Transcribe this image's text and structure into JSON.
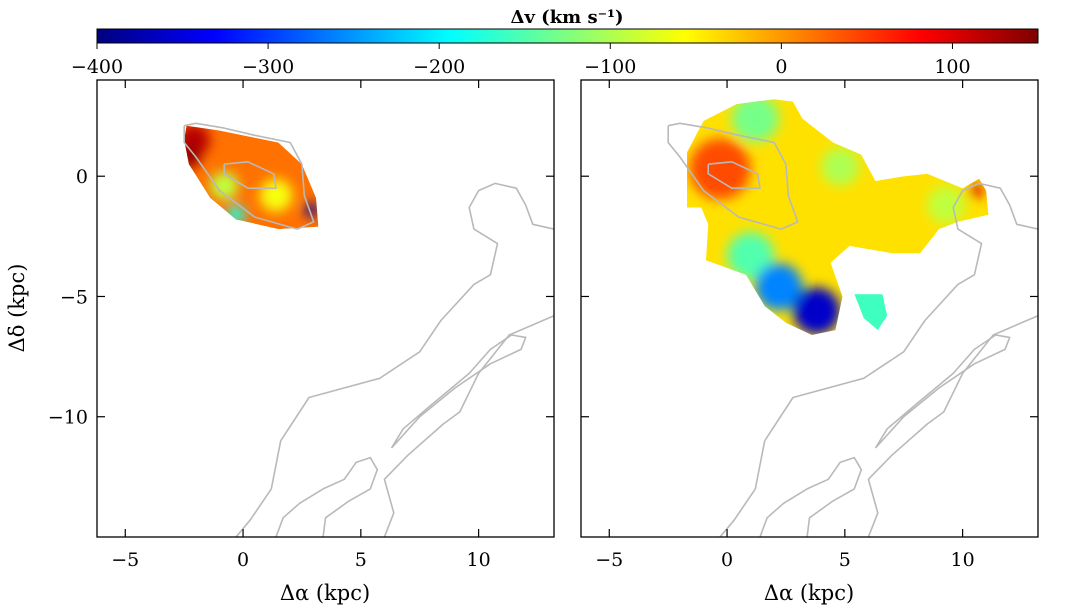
{
  "chart_data": [
    {
      "type": "colorbar",
      "label": "Δv (km s⁻¹)",
      "range": [
        -400,
        150
      ],
      "ticks": [
        -400,
        -300,
        -200,
        -100,
        0,
        100
      ],
      "tick_labels": [
        "−400",
        "−300",
        "−200",
        "−100",
        "0",
        "100"
      ],
      "colormap": "jet",
      "colors": [
        "#00007f",
        "#0000ff",
        "#007fff",
        "#00ffff",
        "#7fff7f",
        "#ffff00",
        "#ff7f00",
        "#ff0000",
        "#7f0000"
      ]
    },
    {
      "type": "heatmap",
      "panel": "left",
      "xlabel": "Δα (kpc)",
      "ylabel": "Δδ (kpc)",
      "xlim": [
        -6.2,
        13.2
      ],
      "ylim": [
        -15,
        4
      ],
      "xticks": [
        -5,
        0,
        5,
        10
      ],
      "xtick_labels": [
        "−5",
        "0",
        "5",
        "10"
      ],
      "yticks": [
        0,
        -5,
        -10
      ],
      "ytick_labels": [
        "0",
        "−5",
        "−10"
      ],
      "regions": [
        {
          "polygon": [
            [
              -2.4,
              2.1
            ],
            [
              -1.0,
              1.9
            ],
            [
              1.5,
              1.4
            ],
            [
              2.5,
              0.5
            ],
            [
              3.1,
              -0.9
            ],
            [
              3.2,
              -2.1
            ],
            [
              1.5,
              -2.2
            ],
            [
              -0.3,
              -1.8
            ],
            [
              -1.4,
              -0.9
            ],
            [
              -2.3,
              0.5
            ],
            [
              -2.5,
              1.5
            ]
          ],
          "dv": 20,
          "highlights": [
            {
              "x": -2.1,
              "y": 1.5,
              "r": 0.7,
              "dv": 120
            },
            {
              "x": -2.3,
              "y": 0.8,
              "r": 0.5,
              "dv": 140
            },
            {
              "x": -0.8,
              "y": -0.4,
              "r": 0.6,
              "dv": -90
            },
            {
              "x": 1.4,
              "y": -0.8,
              "r": 0.7,
              "dv": -60
            },
            {
              "x": -0.3,
              "y": -1.6,
              "r": 0.4,
              "dv": -180
            },
            {
              "x": 2.9,
              "y": -1.4,
              "r": 0.3,
              "dv": -380
            }
          ]
        }
      ],
      "contours": [
        [
          [
            -2.5,
            2.1
          ],
          [
            -2.5,
            1.4
          ],
          [
            -2.0,
            0.8
          ],
          [
            -1.0,
            -0.6
          ],
          [
            0.5,
            -1.7
          ],
          [
            2.3,
            -2.2
          ],
          [
            3.0,
            -1.9
          ],
          [
            2.6,
            -0.8
          ],
          [
            2.5,
            0.5
          ],
          [
            2.0,
            1.4
          ],
          [
            0.5,
            1.7
          ],
          [
            -0.8,
            2.0
          ],
          [
            -2.0,
            2.2
          ],
          [
            -2.5,
            2.1
          ]
        ],
        [
          [
            -0.8,
            0.5
          ],
          [
            0.2,
            0.6
          ],
          [
            1.3,
            0.1
          ],
          [
            1.4,
            -0.5
          ],
          [
            0.2,
            -0.5
          ],
          [
            -0.8,
            0.1
          ],
          [
            -0.8,
            0.5
          ]
        ],
        [
          [
            6.0,
            -15.0
          ],
          [
            6.4,
            -14.0
          ],
          [
            6.0,
            -12.6
          ],
          [
            7.0,
            -11.6
          ],
          [
            8.5,
            -10.3
          ],
          [
            9.2,
            -9.8
          ],
          [
            10.0,
            -8.2
          ],
          [
            11.3,
            -6.6
          ],
          [
            13.2,
            -5.8
          ]
        ],
        [
          [
            3.4,
            -15.0
          ],
          [
            3.5,
            -14.2
          ],
          [
            4.5,
            -13.5
          ],
          [
            5.4,
            -13.0
          ],
          [
            5.7,
            -12.2
          ],
          [
            5.4,
            -11.7
          ],
          [
            4.8,
            -11.9
          ],
          [
            4.3,
            -12.6
          ],
          [
            3.4,
            -13.0
          ],
          [
            2.4,
            -13.6
          ],
          [
            1.7,
            -14.2
          ],
          [
            1.4,
            -15.0
          ]
        ],
        [
          [
            6.3,
            -11.3
          ],
          [
            7.5,
            -10.0
          ],
          [
            9.0,
            -8.8
          ],
          [
            10.5,
            -7.8
          ],
          [
            11.8,
            -7.2
          ],
          [
            12.0,
            -6.7
          ],
          [
            11.4,
            -6.6
          ],
          [
            10.5,
            -7.2
          ],
          [
            9.6,
            -8.2
          ],
          [
            8.0,
            -9.5
          ],
          [
            6.8,
            -10.5
          ],
          [
            6.3,
            -11.3
          ]
        ],
        [
          [
            -0.3,
            -15.0
          ],
          [
            0.3,
            -14.3
          ],
          [
            1.2,
            -13.0
          ],
          [
            1.6,
            -11.0
          ],
          [
            2.8,
            -9.2
          ],
          [
            5.8,
            -8.4
          ],
          [
            7.5,
            -7.3
          ],
          [
            8.4,
            -6.0
          ],
          [
            9.8,
            -4.5
          ],
          [
            10.5,
            -4.1
          ],
          [
            10.8,
            -2.8
          ],
          [
            9.8,
            -2.2
          ],
          [
            9.6,
            -1.3
          ],
          [
            10.0,
            -0.6
          ],
          [
            10.7,
            -0.3
          ],
          [
            11.6,
            -0.5
          ],
          [
            12.0,
            -1.2
          ],
          [
            12.3,
            -2.0
          ],
          [
            13.2,
            -2.2
          ]
        ]
      ]
    },
    {
      "type": "heatmap",
      "panel": "right",
      "xlabel": "Δα (kpc)",
      "ylabel": "",
      "xlim": [
        -6.2,
        13.2
      ],
      "ylim": [
        -15,
        4
      ],
      "xticks": [
        -5,
        0,
        5,
        10
      ],
      "xtick_labels": [
        "−5",
        "0",
        "5",
        "10"
      ],
      "yticks": [
        0,
        -5,
        -10
      ],
      "ytick_labels": [
        "",
        "",
        ""
      ],
      "regions": [
        {
          "polygon": [
            [
              -1.7,
              1.0
            ],
            [
              -1.0,
              2.3
            ],
            [
              0.4,
              3.0
            ],
            [
              2.0,
              3.2
            ],
            [
              2.8,
              3.1
            ],
            [
              3.2,
              2.4
            ],
            [
              4.5,
              1.4
            ],
            [
              5.7,
              0.9
            ],
            [
              6.3,
              -0.2
            ],
            [
              7.5,
              0.0
            ],
            [
              8.5,
              0.1
            ],
            [
              10.0,
              -0.5
            ],
            [
              10.7,
              -0.1
            ],
            [
              11.0,
              -0.6
            ],
            [
              11.1,
              -1.6
            ],
            [
              9.8,
              -1.9
            ],
            [
              9.0,
              -2.2
            ],
            [
              8.2,
              -3.2
            ],
            [
              7.0,
              -3.2
            ],
            [
              5.2,
              -2.9
            ],
            [
              4.4,
              -3.6
            ],
            [
              4.9,
              -5.0
            ],
            [
              4.6,
              -6.4
            ],
            [
              3.6,
              -6.6
            ],
            [
              2.5,
              -6.1
            ],
            [
              1.6,
              -5.4
            ],
            [
              0.8,
              -4.1
            ],
            [
              -0.9,
              -3.5
            ],
            [
              -0.8,
              -2.0
            ],
            [
              -1.1,
              -1.3
            ],
            [
              -1.7,
              -1.3
            ]
          ],
          "dv": -40,
          "highlights": [
            {
              "x": -0.3,
              "y": 0.3,
              "r": 1.3,
              "dv": 40
            },
            {
              "x": 1.2,
              "y": 2.4,
              "r": 1.0,
              "dv": -130
            },
            {
              "x": 4.8,
              "y": 0.4,
              "r": 0.8,
              "dv": -100
            },
            {
              "x": 1.0,
              "y": -3.3,
              "r": 1.0,
              "dv": -150
            },
            {
              "x": 2.2,
              "y": -4.6,
              "r": 1.0,
              "dv": -260
            },
            {
              "x": 3.8,
              "y": -5.6,
              "r": 1.0,
              "dv": -360
            },
            {
              "x": 9.3,
              "y": -1.2,
              "r": 0.8,
              "dv": -90
            },
            {
              "x": 10.6,
              "y": -0.6,
              "r": 0.3,
              "dv": 100
            }
          ]
        },
        {
          "polygon": [
            [
              5.4,
              -4.9
            ],
            [
              6.6,
              -4.9
            ],
            [
              6.8,
              -5.8
            ],
            [
              6.4,
              -6.4
            ],
            [
              5.8,
              -5.9
            ]
          ],
          "dv": -160,
          "highlights": []
        }
      ],
      "contours": [
        [
          [
            -2.5,
            2.1
          ],
          [
            -2.5,
            1.4
          ],
          [
            -2.0,
            0.8
          ],
          [
            -1.0,
            -0.6
          ],
          [
            0.5,
            -1.7
          ],
          [
            2.3,
            -2.2
          ],
          [
            3.0,
            -1.9
          ],
          [
            2.6,
            -0.8
          ],
          [
            2.5,
            0.5
          ],
          [
            2.0,
            1.4
          ],
          [
            0.5,
            1.7
          ],
          [
            -0.8,
            2.0
          ],
          [
            -2.0,
            2.2
          ],
          [
            -2.5,
            2.1
          ]
        ],
        [
          [
            -0.8,
            0.5
          ],
          [
            0.2,
            0.6
          ],
          [
            1.3,
            0.1
          ],
          [
            1.4,
            -0.5
          ],
          [
            0.2,
            -0.5
          ],
          [
            -0.8,
            0.1
          ],
          [
            -0.8,
            0.5
          ]
        ],
        [
          [
            6.0,
            -15.0
          ],
          [
            6.4,
            -14.0
          ],
          [
            6.0,
            -12.6
          ],
          [
            7.0,
            -11.6
          ],
          [
            8.5,
            -10.3
          ],
          [
            9.2,
            -9.8
          ],
          [
            10.0,
            -8.2
          ],
          [
            11.3,
            -6.6
          ],
          [
            13.2,
            -5.8
          ]
        ],
        [
          [
            3.4,
            -15.0
          ],
          [
            3.5,
            -14.2
          ],
          [
            4.5,
            -13.5
          ],
          [
            5.4,
            -13.0
          ],
          [
            5.7,
            -12.2
          ],
          [
            5.4,
            -11.7
          ],
          [
            4.8,
            -11.9
          ],
          [
            4.3,
            -12.6
          ],
          [
            3.4,
            -13.0
          ],
          [
            2.4,
            -13.6
          ],
          [
            1.7,
            -14.2
          ],
          [
            1.4,
            -15.0
          ]
        ],
        [
          [
            6.3,
            -11.3
          ],
          [
            7.5,
            -10.0
          ],
          [
            9.0,
            -8.8
          ],
          [
            10.5,
            -7.8
          ],
          [
            11.8,
            -7.2
          ],
          [
            12.0,
            -6.7
          ],
          [
            11.4,
            -6.6
          ],
          [
            10.5,
            -7.2
          ],
          [
            9.6,
            -8.2
          ],
          [
            8.0,
            -9.5
          ],
          [
            6.8,
            -10.5
          ],
          [
            6.3,
            -11.3
          ]
        ],
        [
          [
            -0.3,
            -15.0
          ],
          [
            0.3,
            -14.3
          ],
          [
            1.2,
            -13.0
          ],
          [
            1.6,
            -11.0
          ],
          [
            2.8,
            -9.2
          ],
          [
            5.8,
            -8.4
          ],
          [
            7.5,
            -7.3
          ],
          [
            8.4,
            -6.0
          ],
          [
            9.8,
            -4.5
          ],
          [
            10.5,
            -4.1
          ],
          [
            10.8,
            -2.8
          ],
          [
            9.8,
            -2.2
          ],
          [
            9.6,
            -1.3
          ],
          [
            10.0,
            -0.6
          ],
          [
            10.7,
            -0.3
          ],
          [
            11.6,
            -0.5
          ],
          [
            12.0,
            -1.2
          ],
          [
            12.3,
            -2.0
          ],
          [
            13.2,
            -2.2
          ]
        ]
      ]
    }
  ]
}
